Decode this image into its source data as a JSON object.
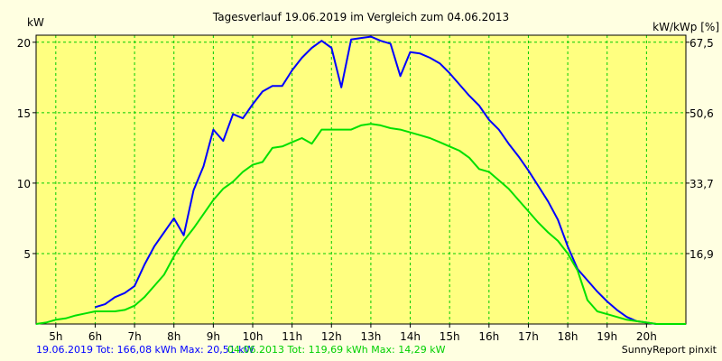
{
  "chart_data": {
    "type": "line",
    "title": "Tagesverlauf 19.06.2019 im Vergleich zum 04.06.2013",
    "ylabel": "kW",
    "ylabel_right": "kW/kWp [%]",
    "ylim": [
      0,
      20.5
    ],
    "xlim": [
      4.5,
      21.0
    ],
    "yticks": [
      5,
      10,
      15,
      20
    ],
    "ytick_labels": [
      "5",
      "10",
      "15",
      "20"
    ],
    "right_ticks": [
      {
        "value": 5,
        "label": "16,9"
      },
      {
        "value": 10,
        "label": "33,7"
      },
      {
        "value": 15,
        "label": "50,6"
      },
      {
        "value": 20,
        "label": "67,5"
      }
    ],
    "xticks": [
      5,
      6,
      7,
      8,
      9,
      10,
      11,
      12,
      13,
      14,
      15,
      16,
      17,
      18,
      19,
      20
    ],
    "xtick_labels": [
      "5h",
      "6h",
      "7h",
      "8h",
      "9h",
      "10h",
      "11h",
      "12h",
      "13h",
      "14h",
      "15h",
      "16h",
      "17h",
      "18h",
      "19h",
      "20h"
    ],
    "grid": true,
    "background": "#ffffe1",
    "plot_background": "#ffff80",
    "grid_color": "#00cc00",
    "series": [
      {
        "name": "19.06.2019",
        "color": "#0000ff",
        "x": [
          6.0,
          6.25,
          6.5,
          6.75,
          7.0,
          7.25,
          7.5,
          7.75,
          8.0,
          8.25,
          8.5,
          8.75,
          9.0,
          9.25,
          9.5,
          9.75,
          10.0,
          10.25,
          10.5,
          10.75,
          11.0,
          11.25,
          11.5,
          11.75,
          12.0,
          12.25,
          12.5,
          12.75,
          13.0,
          13.25,
          13.5,
          13.75,
          14.0,
          14.25,
          14.5,
          14.75,
          15.0,
          15.25,
          15.5,
          15.75,
          16.0,
          16.25,
          16.5,
          16.75,
          17.0,
          17.25,
          17.5,
          17.75,
          18.0,
          18.25,
          18.5,
          18.75,
          19.0,
          19.25,
          19.5,
          19.75,
          20.0,
          20.25,
          20.5,
          20.75,
          21.0
        ],
        "values": [
          1.2,
          1.4,
          1.9,
          2.2,
          2.7,
          4.2,
          5.5,
          6.5,
          7.5,
          6.3,
          9.5,
          11.2,
          13.8,
          13.0,
          14.9,
          14.6,
          15.6,
          16.5,
          16.9,
          16.9,
          18.0,
          18.9,
          19.6,
          20.1,
          19.6,
          16.8,
          20.2,
          20.3,
          20.4,
          20.1,
          19.9,
          17.6,
          19.3,
          19.2,
          18.9,
          18.5,
          17.8,
          17.0,
          16.2,
          15.5,
          14.5,
          13.8,
          12.8,
          11.9,
          10.9,
          9.8,
          8.7,
          7.4,
          5.5,
          3.9,
          3.1,
          2.3,
          1.6,
          1.0,
          0.5,
          0.2,
          0.1,
          0.0,
          0.0,
          0.0,
          0.0
        ]
      },
      {
        "name": "04.06.2013",
        "color": "#00e000",
        "x": [
          4.5,
          4.75,
          5.0,
          5.25,
          5.5,
          5.75,
          6.0,
          6.25,
          6.5,
          6.75,
          7.0,
          7.25,
          7.5,
          7.75,
          8.0,
          8.25,
          8.5,
          8.75,
          9.0,
          9.25,
          9.5,
          9.75,
          10.0,
          10.25,
          10.5,
          10.75,
          11.0,
          11.25,
          11.5,
          11.75,
          12.0,
          12.25,
          12.5,
          12.75,
          13.0,
          13.25,
          13.5,
          13.75,
          14.0,
          14.25,
          14.5,
          14.75,
          15.0,
          15.25,
          15.5,
          15.75,
          16.0,
          16.25,
          16.5,
          16.75,
          17.0,
          17.25,
          17.5,
          17.75,
          18.0,
          18.25,
          18.5,
          18.75,
          19.0,
          19.25,
          19.5,
          19.75,
          20.0,
          20.25,
          20.5,
          20.75,
          21.0
        ],
        "values": [
          0.0,
          0.1,
          0.3,
          0.4,
          0.6,
          0.75,
          0.9,
          0.9,
          0.9,
          1.0,
          1.3,
          1.9,
          2.7,
          3.5,
          4.8,
          5.9,
          6.8,
          7.8,
          8.8,
          9.6,
          10.1,
          10.8,
          11.3,
          11.5,
          12.5,
          12.6,
          12.9,
          13.2,
          12.8,
          13.8,
          13.8,
          13.8,
          13.8,
          14.1,
          14.2,
          14.1,
          13.9,
          13.8,
          13.6,
          13.4,
          13.2,
          12.9,
          12.6,
          12.3,
          11.8,
          11.0,
          10.8,
          10.2,
          9.6,
          8.8,
          8.0,
          7.2,
          6.5,
          5.9,
          5.0,
          3.8,
          1.7,
          0.9,
          0.7,
          0.5,
          0.3,
          0.2,
          0.1,
          0.0,
          0.0,
          0.0,
          0.0
        ]
      }
    ]
  },
  "footer": {
    "series1_summary": "19.06.2019 Tot: 166,08 kWh Max: 20,51 kW",
    "series2_summary": "04.06.2013 Tot: 119,69 kWh Max: 14,29 kW",
    "credit": "SunnyReport pinxit",
    "series1_color": "#0000ff",
    "series2_color": "#00d000"
  }
}
